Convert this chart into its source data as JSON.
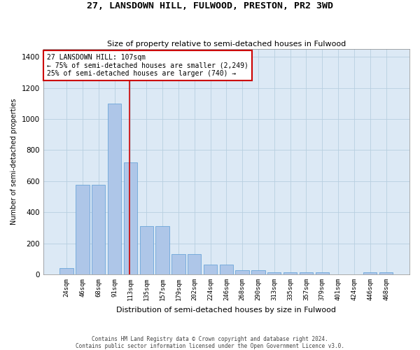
{
  "title": "27, LANSDOWN HILL, FULWOOD, PRESTON, PR2 3WD",
  "subtitle": "Size of property relative to semi-detached houses in Fulwood",
  "xlabel": "Distribution of semi-detached houses by size in Fulwood",
  "ylabel": "Number of semi-detached properties",
  "footer1": "Contains HM Land Registry data © Crown copyright and database right 2024.",
  "footer2": "Contains public sector information licensed under the Open Government Licence v3.0.",
  "bar_labels": [
    "24sqm",
    "46sqm",
    "68sqm",
    "91sqm",
    "113sqm",
    "135sqm",
    "157sqm",
    "179sqm",
    "202sqm",
    "224sqm",
    "246sqm",
    "268sqm",
    "290sqm",
    "313sqm",
    "335sqm",
    "357sqm",
    "379sqm",
    "401sqm",
    "424sqm",
    "446sqm",
    "468sqm"
  ],
  "bar_values": [
    40,
    575,
    575,
    1100,
    720,
    310,
    310,
    130,
    130,
    65,
    65,
    28,
    28,
    16,
    16,
    14,
    14,
    2,
    2,
    14,
    14
  ],
  "bar_color": "#aec6e8",
  "bar_edge_color": "#5a9bd5",
  "property_label": "27 LANSDOWN HILL: 107sqm",
  "pct75_label": "← 75% of semi-detached houses are smaller (2,249)",
  "pct25_label": "25% of semi-detached houses are larger (740) →",
  "vline_pos": 3.93,
  "ylim": [
    0,
    1450
  ],
  "yticks": [
    0,
    200,
    400,
    600,
    800,
    1000,
    1200,
    1400
  ],
  "background_color": "#ffffff",
  "plot_bg_color": "#dce9f5",
  "grid_color": "#b8cfe0"
}
